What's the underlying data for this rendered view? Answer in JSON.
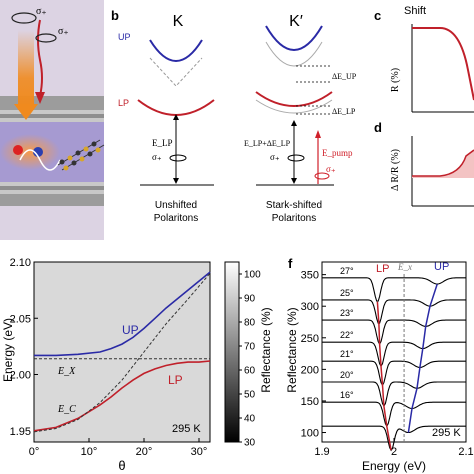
{
  "panels": {
    "a": {
      "sigma_a": "σ₊",
      "sigma_b": "σ₊"
    },
    "b": {
      "letter": "b",
      "left_valley": "K",
      "right_valley": "K′",
      "up": "UP",
      "lp": "LP",
      "e_lp": "E_LP",
      "sigma_left": "σ₊",
      "sigma_right": "σ₊",
      "e_sum": "E_LP+ΔE_LP",
      "de_up": "ΔE_UP",
      "de_lp": "ΔE_LP",
      "e_pump": "E_pump",
      "sigma_pump": "σ₊",
      "caption_left_1": "Unshifted",
      "caption_left_2": "Polaritons",
      "caption_right_1": "Stark-shifted",
      "caption_right_2": "Polaritons"
    },
    "c": {
      "letter": "c",
      "title": "Shift",
      "ylabel": "R (%)"
    },
    "d": {
      "letter": "d",
      "ylabel": "Δ R/R (%)"
    },
    "e": {
      "ylabel": "Energy (eV)",
      "xlabel": "θ",
      "colorbar_label": "Reflectance (%)",
      "up": "UP",
      "lp": "LP",
      "ex": "E_X",
      "ec": "E_C",
      "temp": "295 K"
    },
    "f": {
      "letter": "f",
      "ylabel": "Reflectance (%)",
      "xlabel": "Energy (eV)",
      "lp": "LP",
      "ex": "E_x",
      "up": "UP",
      "temp": "295 K"
    }
  },
  "colors": {
    "up": "#2a2aa6",
    "lp": "#c0202a",
    "pump": "#d0202a",
    "orange": "#f08a1e"
  },
  "chart_data": [
    {
      "type": "heatmap",
      "panel": "e",
      "xlabel": "θ",
      "ylabel": "Energy (eV)",
      "xlim": [
        0,
        32
      ],
      "ylim": [
        1.94,
        2.1
      ],
      "x_ticks": [
        "0°",
        "10°",
        "20°",
        "30°"
      ],
      "x_tick_values": [
        0,
        10,
        20,
        30
      ],
      "y_ticks": [
        "1.95",
        "2.00",
        "2.05",
        "2.10"
      ],
      "y_tick_values": [
        1.95,
        2.0,
        2.05,
        2.1
      ],
      "colorbar": {
        "label": "Reflectance (%)",
        "range": [
          30,
          105
        ],
        "ticks": [
          "30",
          "40",
          "50",
          "60",
          "70",
          "80",
          "90",
          "100"
        ],
        "tick_values": [
          30,
          40,
          50,
          60,
          70,
          80,
          90,
          100
        ]
      },
      "series": [
        {
          "name": "UP",
          "x": [
            0,
            4,
            8,
            12,
            14,
            16,
            18,
            20,
            22,
            24,
            26,
            28,
            30,
            32
          ],
          "y": [
            2.017,
            2.017,
            2.018,
            2.02,
            2.023,
            2.027,
            2.033,
            2.041,
            2.05,
            2.059,
            2.067,
            2.075,
            2.083,
            2.091
          ]
        },
        {
          "name": "LP",
          "x": [
            0,
            4,
            8,
            12,
            14,
            16,
            18,
            20,
            22,
            24,
            26,
            28,
            30,
            32
          ],
          "y": [
            1.95,
            1.953,
            1.961,
            1.973,
            1.98,
            1.988,
            1.995,
            2.001,
            2.005,
            2.008,
            2.01,
            2.011,
            2.011,
            2.012
          ]
        },
        {
          "name": "E_X",
          "x": [
            0,
            32
          ],
          "y": [
            2.014,
            2.014
          ]
        },
        {
          "name": "E_C",
          "x": [
            0,
            4,
            8,
            12,
            16,
            20,
            24,
            28,
            32
          ],
          "y": [
            1.949,
            1.952,
            1.96,
            1.975,
            1.995,
            2.02,
            2.045,
            2.067,
            2.09
          ]
        }
      ]
    },
    {
      "type": "line",
      "panel": "f",
      "xlabel": "Energy (eV)",
      "ylabel": "Reflectance (%)",
      "xlim": [
        1.9,
        2.1
      ],
      "ylim": [
        85,
        370
      ],
      "x_ticks": [
        "1.9",
        "2",
        "2.1"
      ],
      "x_tick_values": [
        1.9,
        2.0,
        2.1
      ],
      "y_ticks": [
        "100",
        "150",
        "200",
        "250",
        "300",
        "350"
      ],
      "y_tick_values": [
        100,
        150,
        200,
        250,
        300,
        350
      ],
      "traces": [
        {
          "label": "27°",
          "offset": 345,
          "lp": 1.977,
          "up": 2.06
        },
        {
          "label": "25°",
          "offset": 310,
          "lp": 1.979,
          "up": 2.05
        },
        {
          "label": "23°",
          "offset": 278,
          "lp": 1.98,
          "up": 2.044
        },
        {
          "label": "22°",
          "offset": 243,
          "lp": 1.982,
          "up": 2.04
        },
        {
          "label": "21°",
          "offset": 213,
          "lp": 1.984,
          "up": 2.036
        },
        {
          "label": "20°",
          "offset": 180,
          "lp": 1.986,
          "up": 2.032
        },
        {
          "label": "16°",
          "offset": 148,
          "lp": 1.99,
          "up": 2.025
        },
        {
          "label": "",
          "offset": 110,
          "lp": 1.996,
          "up": 2.02
        }
      ]
    }
  ]
}
